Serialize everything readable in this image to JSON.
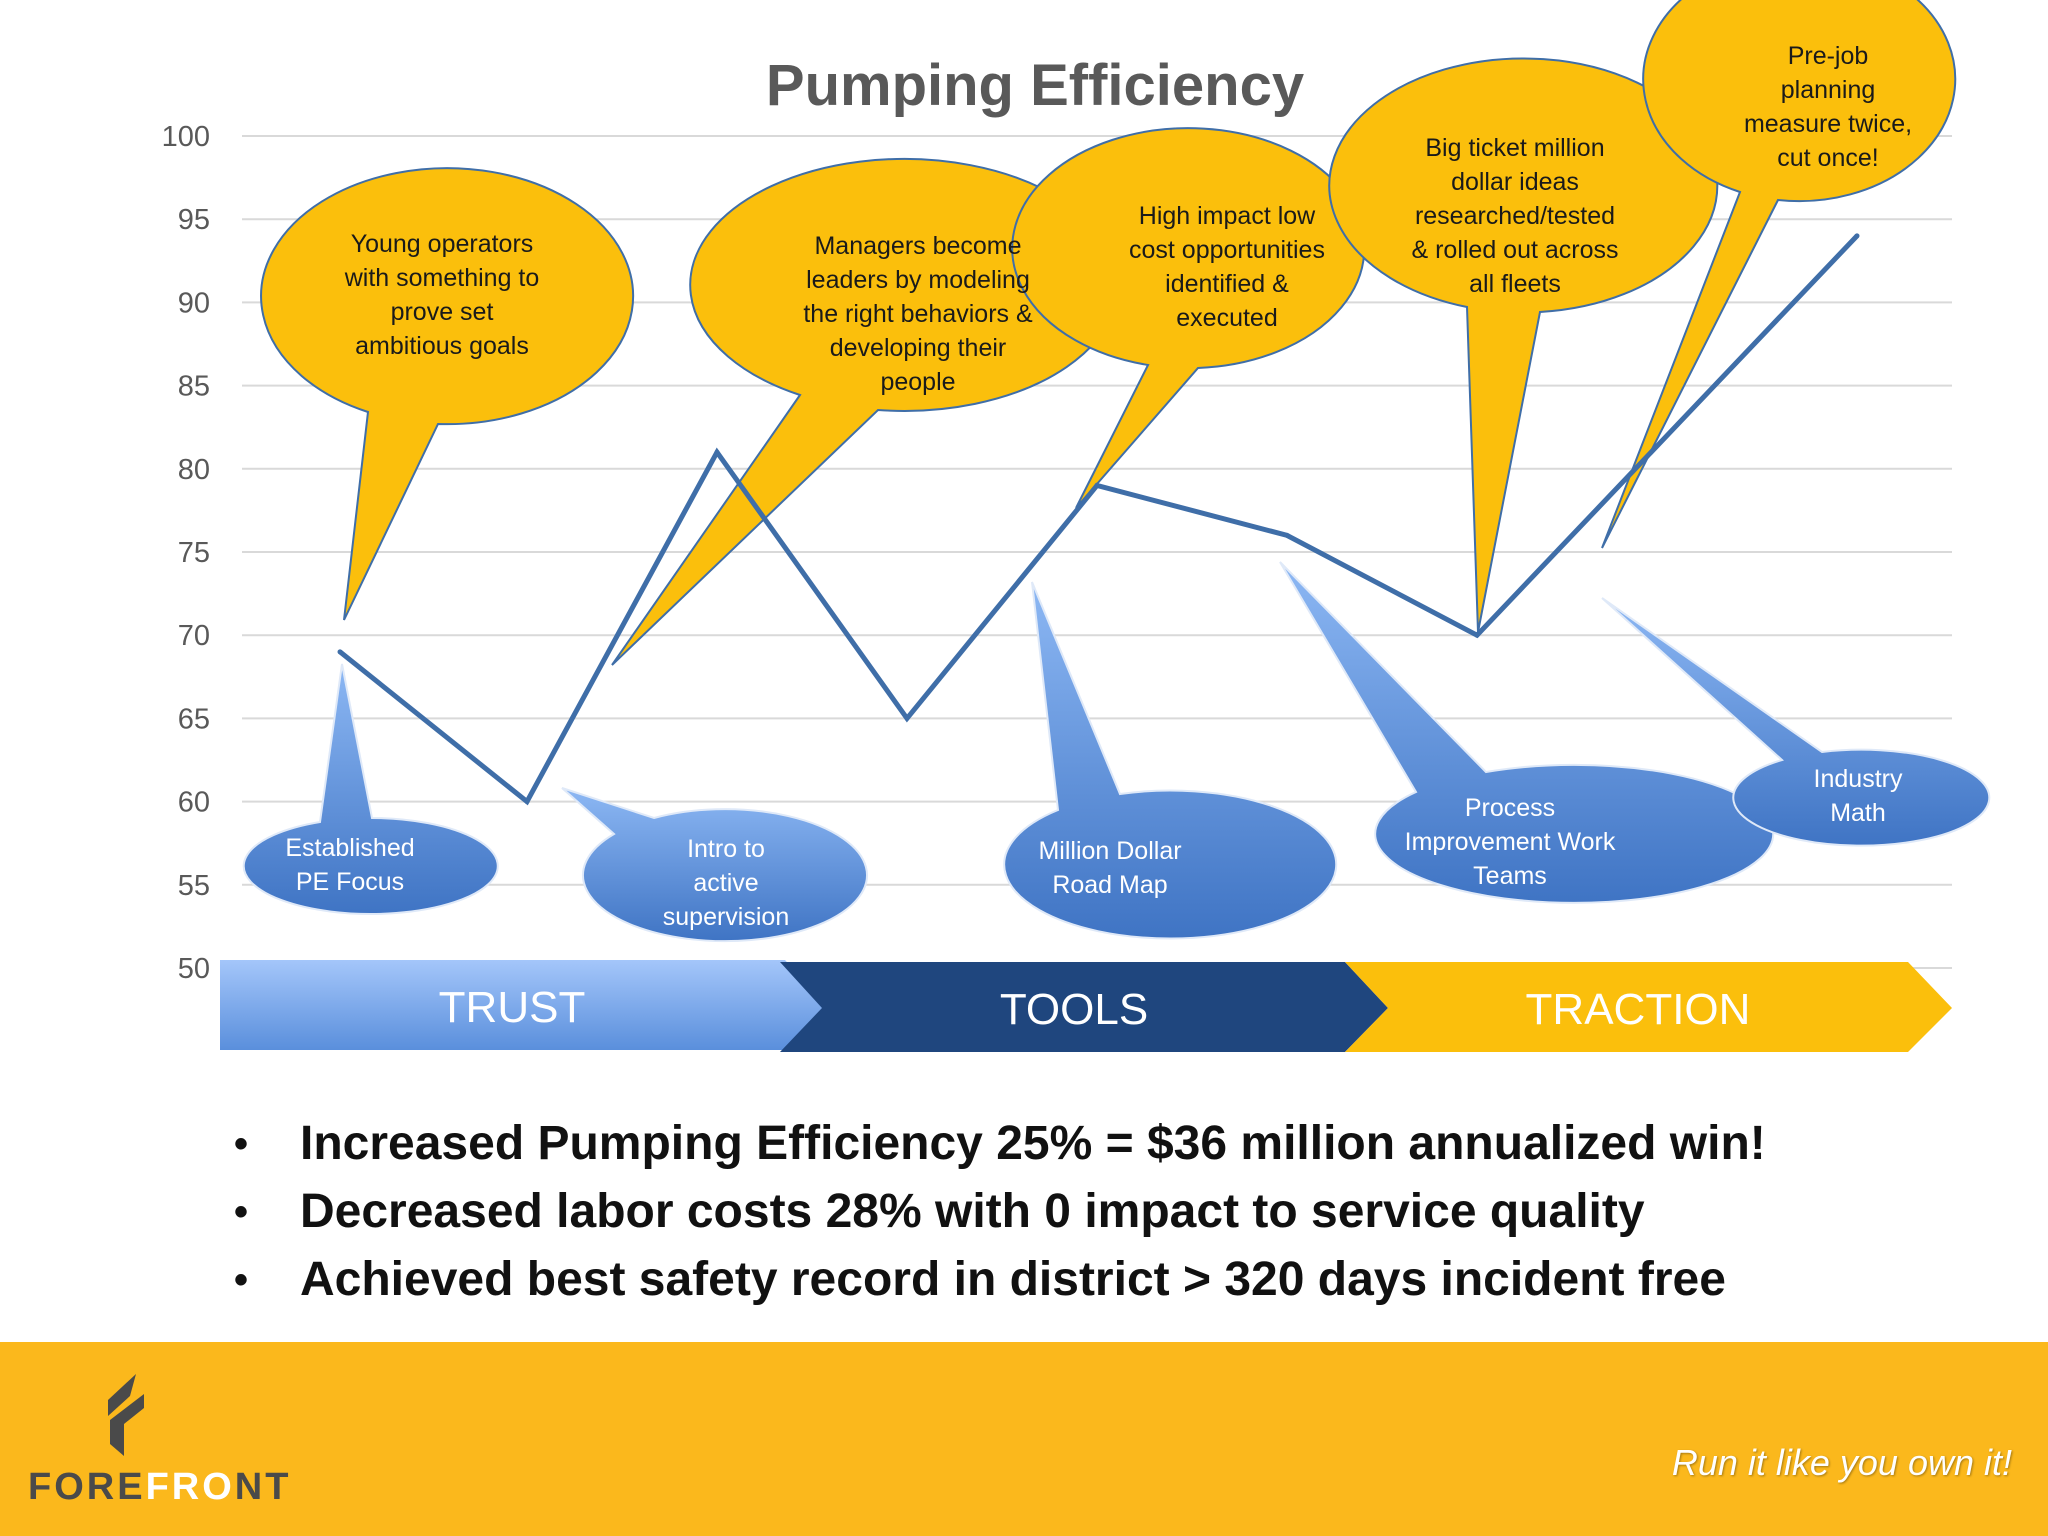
{
  "chart_data": {
    "type": "line",
    "title": "Pumping Efficiency",
    "ylim": [
      50,
      100
    ],
    "yticks": [
      100,
      95,
      90,
      85,
      80,
      75,
      70,
      65,
      60,
      55,
      50
    ],
    "grid": true,
    "x": [
      1,
      2,
      3,
      4,
      5,
      6,
      7,
      8
    ],
    "values": [
      69,
      60,
      81,
      65,
      79,
      76,
      70,
      94
    ],
    "yellow_callouts": [
      "Young operators with something to prove set ambitious goals",
      "Managers become leaders by modeling the right behaviors & developing their people",
      "High impact low cost opportunities identified & executed",
      "Big ticket million dollar ideas researched/tested & rolled out across all fleets",
      "Pre-job planning measure twice, cut once!"
    ],
    "blue_callouts": [
      "Established PE Focus",
      "Intro to active supervision",
      "Million Dollar Road Map",
      "Process Improvement Work Teams",
      "Industry Math"
    ],
    "phases": [
      "TRUST",
      "TOOLS",
      "TRACTION"
    ]
  },
  "bullets": [
    "Increased Pumping Efficiency 25% = $36 million annualized win!",
    "Decreased labor costs 28% with 0 impact to service quality",
    "Achieved best safety record in district  > 320 days incident free"
  ],
  "bullet_glyph": "•",
  "footer": {
    "logo_part1": "FORE",
    "logo_part2": "FRO",
    "logo_part3": "NT",
    "tagline": "Run it like you own it!"
  },
  "colors": {
    "line": "#3f6ea8",
    "callout_yellow": "#fbbf0c",
    "callout_blue": "#4f86d2",
    "trust": "#6fa2e8",
    "tools": "#1f467e",
    "traction": "#fbbf0c",
    "footer": "#fbb81c"
  }
}
